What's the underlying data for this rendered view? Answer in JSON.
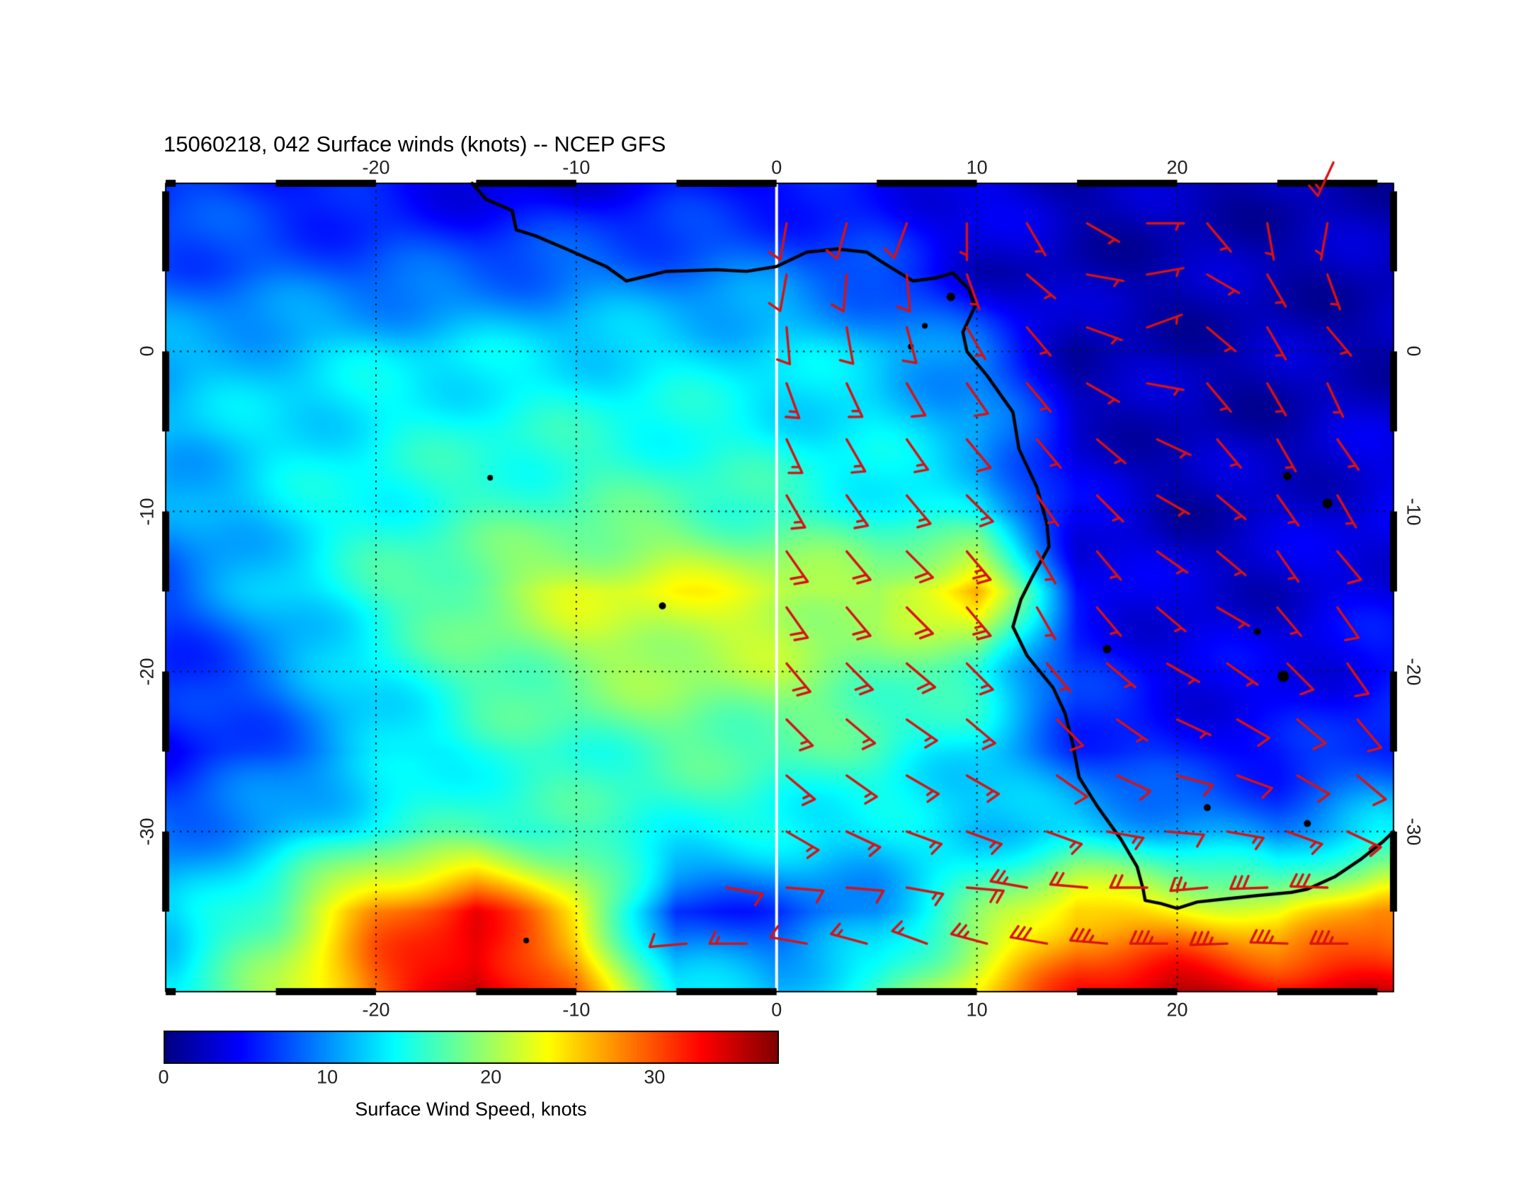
{
  "title": "15060218, 042 Surface winds (knots) -- NCEP GFS",
  "colorbar": {
    "label": "Surface Wind Speed, knots",
    "ticks": [
      0,
      10,
      20,
      30
    ],
    "min": 0,
    "max": 37.6
  },
  "axes": {
    "lon_ticks": [
      -20,
      -10,
      0,
      10,
      20
    ],
    "lat_ticks": [
      0,
      -10,
      -20,
      -30
    ]
  },
  "colors": {
    "barb": "#d91111",
    "coast": "#000000",
    "grid": "#151515",
    "meridian_line": "#ffffff",
    "frame": "#000000",
    "label_text": "#222222"
  },
  "chart_data": {
    "type": "heatmap",
    "title": "15060218, 042 Surface winds (knots) -- NCEP GFS",
    "units": "knots",
    "model": "NCEP GFS",
    "lon_range": [
      -30.5,
      30.8
    ],
    "lat_range": [
      -40,
      10.5
    ],
    "grid_lons": [
      -30,
      -25,
      -20,
      -15,
      -10,
      -5,
      0,
      5,
      10,
      15,
      20,
      25,
      30
    ],
    "grid_lats": [
      10,
      5,
      0,
      -5,
      -10,
      -15,
      -20,
      -25,
      -30,
      -35,
      -40
    ],
    "wind_speed_knots": [
      [
        7,
        6,
        5,
        4,
        4,
        5,
        5,
        5,
        4,
        2,
        2,
        2,
        2
      ],
      [
        8,
        8,
        8,
        8,
        9,
        9,
        9,
        7,
        3,
        2,
        2,
        2,
        2
      ],
      [
        11,
        12,
        13,
        13,
        13,
        13,
        13,
        12,
        9,
        2,
        2,
        2,
        2
      ],
      [
        12,
        13,
        14,
        15,
        15,
        15,
        14,
        13,
        11,
        3,
        2,
        2,
        3
      ],
      [
        10,
        13,
        15,
        16,
        17,
        17,
        16,
        15,
        13,
        4,
        2,
        3,
        4
      ],
      [
        8,
        12,
        16,
        19,
        22,
        23,
        22,
        20,
        27,
        5,
        3,
        3,
        4
      ],
      [
        6,
        9,
        14,
        17,
        19,
        20,
        20,
        18,
        16,
        6,
        4,
        4,
        5
      ],
      [
        5,
        8,
        12,
        15,
        16,
        17,
        17,
        16,
        13,
        7,
        5,
        5,
        7
      ],
      [
        9,
        11,
        15,
        16,
        16,
        15,
        14,
        13,
        12,
        13,
        11,
        9,
        13
      ],
      [
        12,
        18,
        28,
        33,
        24,
        6,
        7,
        10,
        18,
        26,
        24,
        22,
        28
      ],
      [
        14,
        20,
        30,
        36,
        28,
        14,
        12,
        16,
        24,
        32,
        36,
        34,
        34
      ]
    ],
    "gridline_lons": [
      -20,
      -10,
      0,
      10,
      20
    ],
    "gridline_lats": [
      0,
      -10,
      -20,
      -30
    ],
    "coastline": [
      [
        -15.2,
        10.5
      ],
      [
        -14.5,
        9.5
      ],
      [
        -13.2,
        8.8
      ],
      [
        -13,
        7.6
      ],
      [
        -12,
        7.2
      ],
      [
        -10.5,
        6.4
      ],
      [
        -8.5,
        5.3
      ],
      [
        -7.5,
        4.4
      ],
      [
        -5.5,
        5
      ],
      [
        -3,
        5.1
      ],
      [
        -1.5,
        5
      ],
      [
        0,
        5.3
      ],
      [
        1.5,
        6.2
      ],
      [
        3,
        6.4
      ],
      [
        4.5,
        6.2
      ],
      [
        5.5,
        5.4
      ],
      [
        6.8,
        4.4
      ],
      [
        8,
        4.6
      ],
      [
        8.8,
        4.9
      ],
      [
        9.6,
        3.9
      ],
      [
        9.9,
        2.8
      ],
      [
        9.3,
        1.2
      ],
      [
        9.5,
        0
      ],
      [
        10.5,
        -1.5
      ],
      [
        11.8,
        -3.8
      ],
      [
        12.1,
        -6.1
      ],
      [
        13,
        -8.5
      ],
      [
        13.5,
        -10.8
      ],
      [
        13.6,
        -12.2
      ],
      [
        12.8,
        -14
      ],
      [
        12.2,
        -15.5
      ],
      [
        11.8,
        -17.2
      ],
      [
        12.5,
        -19
      ],
      [
        13.8,
        -21
      ],
      [
        14.4,
        -22.6
      ],
      [
        14.8,
        -24.6
      ],
      [
        15.1,
        -26.6
      ],
      [
        16,
        -28.4
      ],
      [
        17.2,
        -30.5
      ],
      [
        18,
        -32.2
      ],
      [
        18.3,
        -33.6
      ],
      [
        18.4,
        -34.3
      ],
      [
        19.2,
        -34.5
      ],
      [
        20,
        -34.8
      ],
      [
        21,
        -34.4
      ],
      [
        22.5,
        -34.2
      ],
      [
        24,
        -34
      ],
      [
        25.7,
        -33.8
      ],
      [
        26.5,
        -33.6
      ],
      [
        27.9,
        -32.8
      ],
      [
        29.2,
        -31.7
      ],
      [
        30.3,
        -30.6
      ],
      [
        30.8,
        -30
      ]
    ],
    "islands": [
      [
        6.7,
        0.3,
        4
      ],
      [
        7.4,
        1.6,
        4
      ],
      [
        8.7,
        3.4,
        6
      ],
      [
        -14.3,
        -7.9,
        4
      ],
      [
        -5.7,
        -15.9,
        5
      ],
      [
        -12.5,
        -36.8,
        4
      ],
      [
        16.5,
        -18.6,
        6
      ],
      [
        25.3,
        -20.3,
        8
      ],
      [
        25.5,
        -7.8,
        6
      ],
      [
        27.5,
        -9.5,
        7
      ],
      [
        24,
        -17.5,
        5
      ],
      [
        21.5,
        -28.5,
        5
      ],
      [
        26.5,
        -29.5,
        5
      ]
    ],
    "barbs": [
      [
        0.5,
        8,
        8,
        190
      ],
      [
        3.5,
        8,
        8,
        195
      ],
      [
        6.5,
        8,
        10,
        200
      ],
      [
        9.5,
        8,
        6,
        180
      ],
      [
        12.5,
        8,
        5,
        150
      ],
      [
        15.5,
        8,
        5,
        120
      ],
      [
        18.5,
        8,
        4,
        90
      ],
      [
        21.5,
        8,
        5,
        140
      ],
      [
        24.5,
        8,
        5,
        170
      ],
      [
        27.5,
        8,
        6,
        190
      ],
      [
        0.5,
        4.8,
        10,
        190
      ],
      [
        3.5,
        4.8,
        10,
        185
      ],
      [
        6.5,
        4.8,
        8,
        175
      ],
      [
        9.5,
        4.8,
        5,
        160
      ],
      [
        12.5,
        4.8,
        4,
        130
      ],
      [
        15.5,
        4.8,
        4,
        100
      ],
      [
        18.5,
        4.8,
        4,
        80
      ],
      [
        21.5,
        4.8,
        4,
        120
      ],
      [
        24.5,
        4.8,
        5,
        150
      ],
      [
        27.5,
        4.8,
        5,
        160
      ],
      [
        0.5,
        1.5,
        12,
        175
      ],
      [
        3.5,
        1.5,
        12,
        170
      ],
      [
        6.5,
        1.5,
        10,
        165
      ],
      [
        9.5,
        1.5,
        6,
        150
      ],
      [
        12.5,
        1.5,
        4,
        140
      ],
      [
        15.5,
        1.5,
        3,
        110
      ],
      [
        18.5,
        1.5,
        4,
        70
      ],
      [
        21.5,
        1.5,
        4,
        130
      ],
      [
        24.5,
        1.5,
        4,
        150
      ],
      [
        27.5,
        1.5,
        5,
        140
      ],
      [
        0.5,
        -2,
        13,
        160
      ],
      [
        3.5,
        -2,
        13,
        155
      ],
      [
        6.5,
        -2,
        12,
        150
      ],
      [
        9.5,
        -2,
        8,
        145
      ],
      [
        12.5,
        -2,
        4,
        140
      ],
      [
        15.5,
        -2,
        4,
        120
      ],
      [
        18.5,
        -2,
        4,
        100
      ],
      [
        21.5,
        -2,
        5,
        140
      ],
      [
        24.5,
        -2,
        5,
        150
      ],
      [
        27.5,
        -2,
        5,
        155
      ],
      [
        0.5,
        -5.5,
        14,
        155
      ],
      [
        3.5,
        -5.5,
        15,
        150
      ],
      [
        6.5,
        -5.5,
        14,
        145
      ],
      [
        9.5,
        -5.5,
        10,
        140
      ],
      [
        13,
        -5.5,
        5,
        140
      ],
      [
        16,
        -5.5,
        4,
        130
      ],
      [
        19,
        -5.5,
        4,
        115
      ],
      [
        22,
        -5.5,
        5,
        140
      ],
      [
        25,
        -5.5,
        5,
        150
      ],
      [
        28,
        -5.5,
        6,
        145
      ],
      [
        0.5,
        -9,
        16,
        150
      ],
      [
        3.5,
        -9,
        17,
        145
      ],
      [
        6.5,
        -9,
        15,
        140
      ],
      [
        9.5,
        -9,
        13,
        135
      ],
      [
        13,
        -9,
        5,
        145
      ],
      [
        16,
        -9,
        5,
        135
      ],
      [
        19,
        -9,
        4,
        120
      ],
      [
        22,
        -9,
        5,
        130
      ],
      [
        25,
        -9,
        6,
        145
      ],
      [
        28,
        -9,
        7,
        150
      ],
      [
        0.5,
        -12.5,
        19,
        145
      ],
      [
        3.5,
        -12.5,
        20,
        140
      ],
      [
        6.5,
        -12.5,
        20,
        135
      ],
      [
        9.5,
        -12.5,
        24,
        140
      ],
      [
        13,
        -12.5,
        6,
        150
      ],
      [
        16,
        -12.5,
        5,
        140
      ],
      [
        19,
        -12.5,
        5,
        125
      ],
      [
        22,
        -12.5,
        6,
        130
      ],
      [
        25,
        -12.5,
        6,
        145
      ],
      [
        28,
        -12.5,
        8,
        140
      ],
      [
        0.5,
        -16,
        21,
        145
      ],
      [
        3.5,
        -16,
        22,
        140
      ],
      [
        6.5,
        -16,
        20,
        135
      ],
      [
        9.5,
        -16,
        27,
        140
      ],
      [
        13,
        -16,
        6,
        150
      ],
      [
        16,
        -16,
        6,
        140
      ],
      [
        19,
        -16,
        5,
        130
      ],
      [
        22,
        -16,
        6,
        120
      ],
      [
        25,
        -16,
        7,
        140
      ],
      [
        28,
        -16,
        8,
        145
      ],
      [
        0.5,
        -19.5,
        19,
        140
      ],
      [
        3.5,
        -19.5,
        19,
        135
      ],
      [
        6.5,
        -19.5,
        18,
        130
      ],
      [
        9.5,
        -19.5,
        15,
        135
      ],
      [
        13.5,
        -19.5,
        7,
        140
      ],
      [
        16.5,
        -19.5,
        6,
        130
      ],
      [
        19.5,
        -19.5,
        6,
        120
      ],
      [
        22.5,
        -19.5,
        7,
        125
      ],
      [
        25.5,
        -19.5,
        8,
        135
      ],
      [
        28.5,
        -19.5,
        9,
        145
      ],
      [
        0.5,
        -23,
        17,
        135
      ],
      [
        3.5,
        -23,
        16,
        130
      ],
      [
        6.5,
        -23,
        15,
        125
      ],
      [
        9.5,
        -23,
        13,
        130
      ],
      [
        14,
        -23,
        8,
        135
      ],
      [
        17,
        -23,
        7,
        125
      ],
      [
        20,
        -23,
        7,
        115
      ],
      [
        23,
        -23,
        8,
        120
      ],
      [
        26,
        -23,
        9,
        130
      ],
      [
        29,
        -23,
        10,
        140
      ],
      [
        0.5,
        -26.5,
        15,
        130
      ],
      [
        3.5,
        -26.5,
        15,
        125
      ],
      [
        6.5,
        -26.5,
        14,
        120
      ],
      [
        9.5,
        -26.5,
        13,
        120
      ],
      [
        14,
        -26.5,
        9,
        125
      ],
      [
        17,
        -26.5,
        10,
        115
      ],
      [
        20,
        -26.5,
        9,
        105
      ],
      [
        23,
        -26.5,
        10,
        110
      ],
      [
        26,
        -26.5,
        11,
        120
      ],
      [
        29,
        -26.5,
        12,
        130
      ],
      [
        0.5,
        -30,
        13,
        120
      ],
      [
        3.5,
        -30,
        14,
        115
      ],
      [
        6.5,
        -30,
        15,
        110
      ],
      [
        9.5,
        -30,
        16,
        110
      ],
      [
        13.5,
        -30,
        13,
        110
      ],
      [
        16.5,
        -30,
        14,
        100
      ],
      [
        19.5,
        -30,
        12,
        95
      ],
      [
        22.5,
        -30,
        13,
        100
      ],
      [
        25.5,
        -30,
        14,
        110
      ],
      [
        28.5,
        -30,
        15,
        115
      ],
      [
        -2.5,
        -33.5,
        8,
        100
      ],
      [
        0.5,
        -33.5,
        10,
        95
      ],
      [
        3.5,
        -33.5,
        11,
        95
      ],
      [
        6.5,
        -33.5,
        13,
        100
      ],
      [
        9.5,
        -33.5,
        18,
        95
      ],
      [
        12.5,
        -33.5,
        24,
        280
      ],
      [
        15.5,
        -33.5,
        22,
        275
      ],
      [
        18.5,
        -33.5,
        20,
        270
      ],
      [
        21.5,
        -33.5,
        26,
        265
      ],
      [
        24.5,
        -33.5,
        28,
        268
      ],
      [
        27.5,
        -33.5,
        30,
        272
      ],
      [
        -4.5,
        -37,
        12,
        265
      ],
      [
        -1.5,
        -37,
        13,
        270
      ],
      [
        1.5,
        -37,
        11,
        280
      ],
      [
        4.5,
        -37,
        13,
        285
      ],
      [
        7.5,
        -37,
        15,
        290
      ],
      [
        10.5,
        -37,
        26,
        285
      ],
      [
        13.5,
        -37,
        30,
        280
      ],
      [
        16.5,
        -37,
        33,
        275
      ],
      [
        19.5,
        -37,
        35,
        270
      ],
      [
        22.5,
        -37,
        34,
        268
      ],
      [
        25.5,
        -37,
        33,
        272
      ],
      [
        28.5,
        -37,
        34,
        270
      ],
      [
        27.8,
        11.8,
        14,
        205
      ]
    ]
  }
}
